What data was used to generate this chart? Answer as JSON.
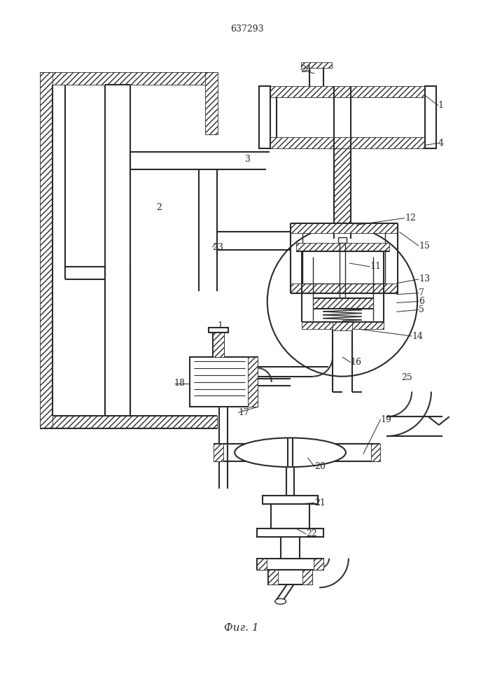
{
  "title": "637293",
  "fig_label": "Фиг. 1",
  "bg_color": "#ffffff",
  "line_color": "#2a2a2a",
  "figsize": [
    7.07,
    10.0
  ],
  "dpi": 100
}
